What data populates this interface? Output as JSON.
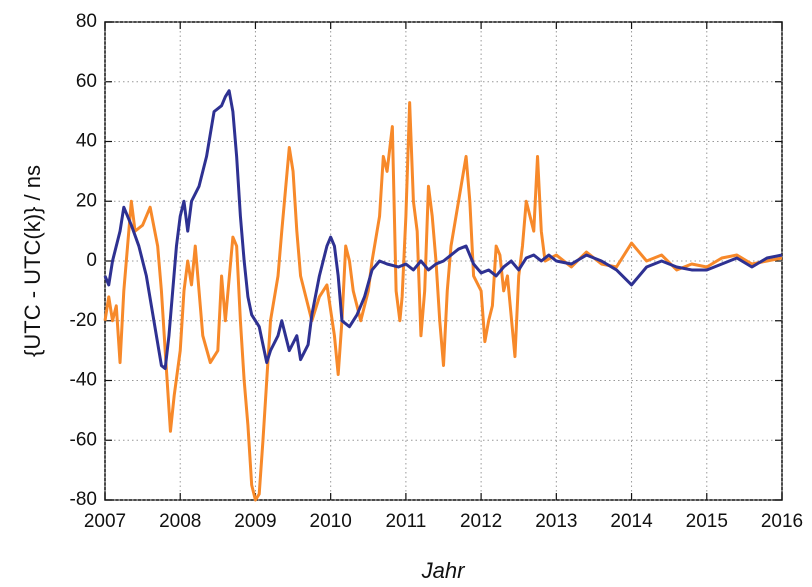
{
  "chart_data": {
    "type": "line",
    "x_label": "Jahr",
    "y_label": "{UTC - UTC(k)} / ns",
    "xlim": [
      2007,
      2016
    ],
    "xticks": [
      2007,
      2008,
      2009,
      2010,
      2011,
      2012,
      2013,
      2014,
      2015,
      2016
    ],
    "ylim": [
      -80,
      80
    ],
    "yticks": [
      -80,
      -60,
      -40,
      -20,
      0,
      20,
      40,
      60,
      80
    ],
    "grid": true,
    "series": [
      {
        "color": "#f7892a",
        "x": [
          2007.0,
          2007.05,
          2007.1,
          2007.15,
          2007.2,
          2007.25,
          2007.3,
          2007.35,
          2007.4,
          2007.5,
          2007.6,
          2007.7,
          2007.75,
          2007.8,
          2007.87,
          2007.92,
          2008.0,
          2008.05,
          2008.1,
          2008.15,
          2008.2,
          2008.3,
          2008.4,
          2008.5,
          2008.55,
          2008.6,
          2008.7,
          2008.75,
          2008.8,
          2008.85,
          2008.9,
          2008.95,
          2009.0,
          2009.05,
          2009.1,
          2009.15,
          2009.2,
          2009.3,
          2009.35,
          2009.45,
          2009.5,
          2009.55,
          2009.6,
          2009.7,
          2009.75,
          2009.85,
          2009.95,
          2010.05,
          2010.1,
          2010.15,
          2010.2,
          2010.25,
          2010.3,
          2010.4,
          2010.5,
          2010.55,
          2010.65,
          2010.7,
          2010.75,
          2010.82,
          2010.87,
          2010.92,
          2010.95,
          2011.0,
          2011.05,
          2011.1,
          2011.15,
          2011.2,
          2011.25,
          2011.3,
          2011.35,
          2011.4,
          2011.45,
          2011.5,
          2011.55,
          2011.6,
          2011.7,
          2011.8,
          2011.85,
          2011.9,
          2012.0,
          2012.05,
          2012.1,
          2012.15,
          2012.2,
          2012.25,
          2012.3,
          2012.35,
          2012.45,
          2012.5,
          2012.55,
          2012.6,
          2012.7,
          2012.75,
          2012.8,
          2012.85,
          2013.0,
          2013.2,
          2013.4,
          2013.6,
          2013.8,
          2014.0,
          2014.2,
          2014.4,
          2014.6,
          2014.8,
          2015.0,
          2015.2,
          2015.4,
          2015.6,
          2015.8,
          2016.0
        ],
        "values": [
          -20,
          -12,
          -20,
          -15,
          -34,
          -10,
          5,
          20,
          10,
          12,
          18,
          5,
          -10,
          -30,
          -57,
          -45,
          -30,
          -10,
          0,
          -8,
          5,
          -25,
          -34,
          -30,
          -5,
          -20,
          8,
          5,
          -20,
          -40,
          -55,
          -75,
          -80,
          -78,
          -60,
          -40,
          -20,
          -5,
          10,
          38,
          30,
          10,
          -5,
          -15,
          -20,
          -12,
          -8,
          -25,
          -38,
          -20,
          5,
          0,
          -10,
          -20,
          -10,
          0,
          15,
          35,
          30,
          45,
          -10,
          -20,
          -12,
          15,
          53,
          20,
          10,
          -25,
          -10,
          25,
          15,
          0,
          -20,
          -35,
          -10,
          5,
          20,
          35,
          20,
          -5,
          -10,
          -27,
          -20,
          -15,
          5,
          2,
          -10,
          -5,
          -32,
          -5,
          5,
          20,
          10,
          35,
          10,
          0,
          2,
          -2,
          3,
          -1,
          -2,
          6,
          0,
          2,
          -3,
          -1,
          -2,
          1,
          2,
          -1,
          0,
          1
        ]
      },
      {
        "color": "#2e3192",
        "x": [
          2007.0,
          2007.05,
          2007.1,
          2007.2,
          2007.25,
          2007.35,
          2007.45,
          2007.55,
          2007.65,
          2007.75,
          2007.8,
          2007.85,
          2007.9,
          2007.95,
          2008.0,
          2008.05,
          2008.1,
          2008.15,
          2008.25,
          2008.35,
          2008.45,
          2008.55,
          2008.6,
          2008.65,
          2008.7,
          2008.75,
          2008.8,
          2008.85,
          2008.9,
          2008.95,
          2009.05,
          2009.1,
          2009.15,
          2009.2,
          2009.3,
          2009.35,
          2009.45,
          2009.55,
          2009.6,
          2009.7,
          2009.75,
          2009.85,
          2009.95,
          2010.0,
          2010.05,
          2010.1,
          2010.15,
          2010.25,
          2010.35,
          2010.45,
          2010.55,
          2010.65,
          2010.75,
          2010.9,
          2011.0,
          2011.1,
          2011.2,
          2011.3,
          2011.4,
          2011.5,
          2011.6,
          2011.7,
          2011.8,
          2011.85,
          2011.9,
          2012.0,
          2012.1,
          2012.2,
          2012.3,
          2012.4,
          2012.5,
          2012.6,
          2012.7,
          2012.8,
          2012.9,
          2013.0,
          2013.2,
          2013.4,
          2013.6,
          2013.8,
          2014.0,
          2014.2,
          2014.4,
          2014.6,
          2014.8,
          2015.0,
          2015.2,
          2015.4,
          2015.6,
          2015.8,
          2016.0
        ],
        "values": [
          -5,
          -8,
          0,
          10,
          18,
          12,
          5,
          -5,
          -20,
          -35,
          -36,
          -25,
          -10,
          5,
          15,
          20,
          10,
          20,
          25,
          35,
          50,
          52,
          55,
          57,
          50,
          35,
          15,
          0,
          -12,
          -18,
          -22,
          -28,
          -34,
          -30,
          -25,
          -20,
          -30,
          -25,
          -33,
          -28,
          -18,
          -5,
          5,
          8,
          5,
          -5,
          -20,
          -22,
          -18,
          -12,
          -3,
          0,
          -1,
          -2,
          -1,
          -3,
          0,
          -3,
          -1,
          0,
          2,
          4,
          5,
          2,
          -1,
          -4,
          -3,
          -5,
          -2,
          0,
          -3,
          1,
          2,
          0,
          2,
          0,
          -1,
          2,
          0,
          -3,
          -8,
          -2,
          0,
          -2,
          -3,
          -3,
          -1,
          1,
          -2,
          1,
          2
        ]
      }
    ]
  }
}
